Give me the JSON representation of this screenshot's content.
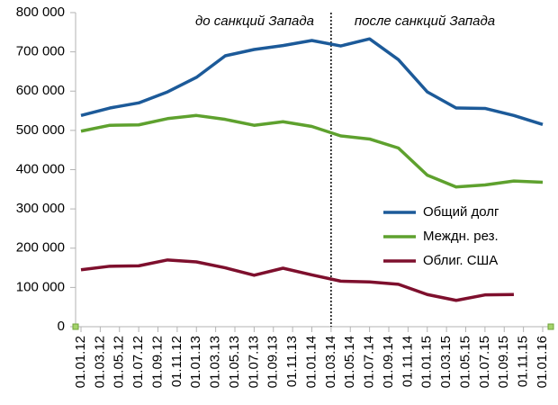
{
  "chart_data": {
    "type": "line",
    "annotations": [
      "до санкций Запада",
      "после санкций Запада"
    ],
    "divider": "2014-03",
    "x": [
      "2012-01",
      "2012-04",
      "2012-07",
      "2012-10",
      "2013-01",
      "2013-04",
      "2013-07",
      "2013-10",
      "2014-01",
      "2014-04",
      "2014-07",
      "2014-10",
      "2015-01",
      "2015-04",
      "2015-07",
      "2015-10",
      "2016-01"
    ],
    "series": [
      {
        "name": "Общий долг",
        "color": "#1c5a99",
        "values": [
          538000,
          557000,
          570000,
          598000,
          635000,
          690000,
          706000,
          716000,
          729000,
          715000,
          733000,
          680000,
          598000,
          557000,
          556000,
          538000,
          515000
        ]
      },
      {
        "name": "Междн. рез.",
        "color": "#5ea12e",
        "values": [
          498000,
          513000,
          514000,
          530000,
          538000,
          528000,
          513000,
          522000,
          510000,
          486000,
          478000,
          455000,
          386000,
          356000,
          361000,
          371000,
          368000
        ]
      },
      {
        "name": "Облиг. США",
        "color": "#7e0f2d",
        "values": [
          145000,
          154000,
          155000,
          170000,
          165000,
          150000,
          131000,
          149000,
          132000,
          116000,
          114000,
          108000,
          82000,
          67000,
          81000,
          82000,
          null
        ]
      }
    ],
    "xlim": [
      "2012-01",
      "2016-01"
    ],
    "xticks": [
      {
        "value": "2012-01",
        "label": "01.01.12"
      },
      {
        "value": "2012-03",
        "label": "01.03.12"
      },
      {
        "value": "2012-05",
        "label": "01.05.12"
      },
      {
        "value": "2012-07",
        "label": "01.07.12"
      },
      {
        "value": "2012-09",
        "label": "01.09.12"
      },
      {
        "value": "2012-11",
        "label": "01.11.12"
      },
      {
        "value": "2013-01",
        "label": "01.01.13"
      },
      {
        "value": "2013-03",
        "label": "01.03.13"
      },
      {
        "value": "2013-05",
        "label": "01.05.13"
      },
      {
        "value": "2013-07",
        "label": "01.07.13"
      },
      {
        "value": "2013-09",
        "label": "01.09.13"
      },
      {
        "value": "2013-11",
        "label": "01.11.13"
      },
      {
        "value": "2014-01",
        "label": "01.01.14"
      },
      {
        "value": "2014-03",
        "label": "01.03.14"
      },
      {
        "value": "2014-05",
        "label": "01.05.14"
      },
      {
        "value": "2014-07",
        "label": "01.07.14"
      },
      {
        "value": "2014-09",
        "label": "01.09.14"
      },
      {
        "value": "2014-11",
        "label": "01.11.14"
      },
      {
        "value": "2015-01",
        "label": "01.01.15"
      },
      {
        "value": "2015-03",
        "label": "01.03.15"
      },
      {
        "value": "2015-05",
        "label": "01.05.15"
      },
      {
        "value": "2015-07",
        "label": "01.07.15"
      },
      {
        "value": "2015-09",
        "label": "01.09.15"
      },
      {
        "value": "2015-11",
        "label": "01.11.15"
      },
      {
        "value": "2016-01",
        "label": "01.01.16"
      }
    ],
    "ylim": [
      0,
      800000
    ],
    "yticks": [
      0,
      {
        "value": 100000,
        "label": "100 000"
      },
      {
        "value": 200000,
        "label": "200 000"
      },
      {
        "value": 300000,
        "label": "300 000"
      },
      {
        "value": 400000,
        "label": "400 000"
      },
      {
        "value": 500000,
        "label": "500 000"
      },
      {
        "value": 600000,
        "label": "600 000"
      },
      {
        "value": 700000,
        "label": "700 000"
      },
      {
        "value": 800000,
        "label": "800 000"
      }
    ],
    "grid": false,
    "legend": "right"
  }
}
